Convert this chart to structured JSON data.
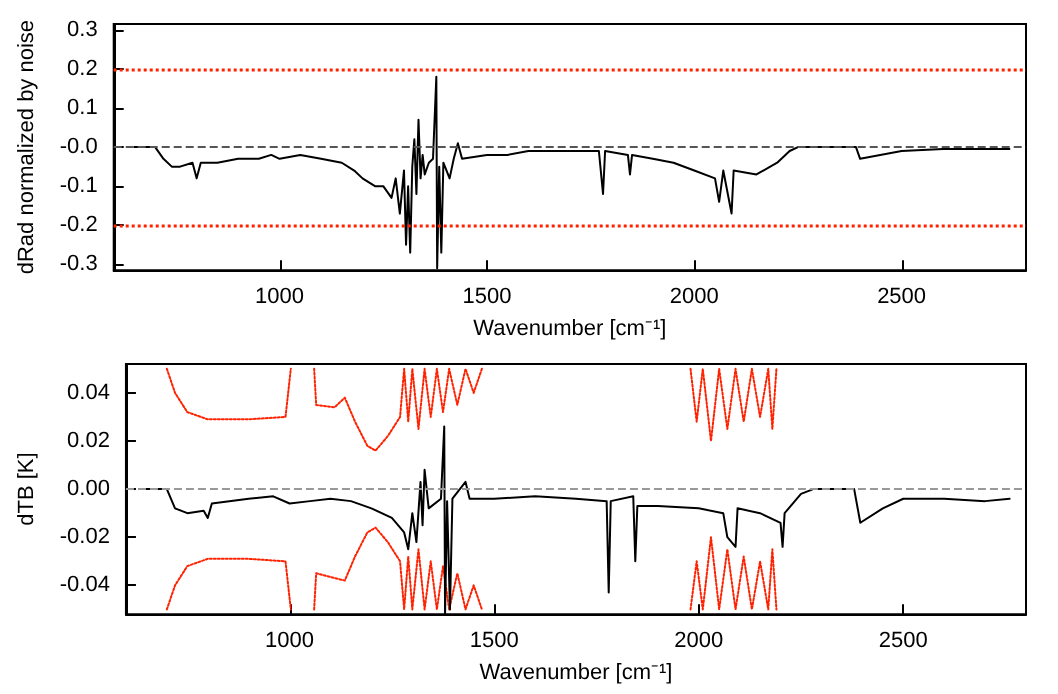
{
  "chart_data": [
    {
      "type": "line",
      "xlabel": "Wavenumber [cm⁻¹]",
      "ylabel": "dRad normalized by noise",
      "xlim": [
        600,
        2800
      ],
      "xticks": [
        1000,
        1500,
        2000,
        2500
      ],
      "ylim": [
        -0.315,
        0.315
      ],
      "yticks": [
        -0.3,
        -0.2,
        -0.1,
        {
          "value": 0,
          "label": "-0.0"
        },
        0.1,
        0.2,
        0.3
      ],
      "grid": false,
      "marker": "none",
      "series": [
        {
          "color": "#000000",
          "line_style": "solid",
          "x": [
            650,
            700,
            720,
            740,
            760,
            790,
            800,
            810,
            850,
            900,
            950,
            980,
            1000,
            1050,
            1100,
            1150,
            1180,
            1200,
            1230,
            1250,
            1270,
            1280,
            1290,
            1300,
            1305,
            1310,
            1315,
            1320,
            1325,
            1330,
            1335,
            1340,
            1345,
            1350,
            1360,
            1370,
            1378,
            1380,
            1385,
            1390,
            1395,
            1410,
            1420,
            1430,
            1440,
            1500,
            1550,
            1600,
            1700,
            1770,
            1780,
            1785,
            1840,
            1845,
            1850,
            1900,
            1950,
            2000,
            2050,
            2060,
            2070,
            2090,
            2095,
            2150,
            2200,
            2230,
            2250,
            2390,
            2400,
            2500,
            2600,
            2760
          ],
          "values": [
            0,
            0,
            -0.03,
            -0.05,
            -0.05,
            -0.04,
            -0.08,
            -0.04,
            -0.04,
            -0.03,
            -0.03,
            -0.02,
            -0.03,
            -0.02,
            -0.03,
            -0.04,
            -0.06,
            -0.08,
            -0.1,
            -0.1,
            -0.13,
            -0.08,
            -0.17,
            -0.06,
            -0.25,
            -0.1,
            -0.27,
            -0.05,
            0.02,
            -0.12,
            0.07,
            -0.08,
            -0.02,
            -0.07,
            -0.04,
            -0.03,
            0.18,
            -0.31,
            -0.05,
            -0.27,
            -0.04,
            -0.08,
            -0.03,
            0.01,
            -0.03,
            -0.02,
            -0.02,
            -0.01,
            -0.01,
            -0.01,
            -0.12,
            -0.01,
            -0.02,
            -0.07,
            -0.02,
            -0.03,
            -0.04,
            -0.06,
            -0.08,
            -0.14,
            -0.06,
            -0.17,
            -0.06,
            -0.07,
            -0.04,
            -0.01,
            0,
            0,
            -0.03,
            -0.01,
            -0.005,
            -0.005
          ]
        }
      ],
      "ref_lines": [
        {
          "axis": "y",
          "value": 0,
          "color": "#555555",
          "line_style": "dashed"
        },
        {
          "axis": "y",
          "value": 0.2,
          "color": "#ff2200",
          "line_style": "dotted"
        },
        {
          "axis": "y",
          "value": -0.2,
          "color": "#ff2200",
          "line_style": "dotted"
        }
      ]
    },
    {
      "type": "line",
      "xlabel": "Wavenumber [cm⁻¹]",
      "ylabel": "dTB [K]",
      "xlim": [
        600,
        2800
      ],
      "xticks": [
        1000,
        1500,
        2000,
        2500
      ],
      "ylim": [
        -0.052,
        0.052
      ],
      "yticks": [
        -0.04,
        -0.02,
        {
          "value": 0,
          "label": "0.00"
        },
        0.02,
        0.04
      ],
      "grid": false,
      "marker": "none",
      "series": [
        {
          "color": "#ff2200",
          "line_style": "dotted",
          "x": [
            700,
            720,
            750,
            800,
            900,
            990,
            1003,
            1010,
            1060,
            1065,
            1110,
            1135,
            1160,
            1190,
            1210,
            1240,
            1270,
            1280,
            1290,
            1300,
            1315,
            1330,
            1345,
            1360,
            1375,
            1390,
            1410,
            1430,
            1450,
            1470,
            1480,
            1980,
            1995,
            2010,
            2030,
            2050,
            2070,
            2090,
            2110,
            2130,
            2150,
            2170,
            2180,
            2190
          ],
          "values": [
            0.05,
            0.04,
            0.032,
            0.029,
            0.029,
            0.03,
            0.05,
            null,
            0.05,
            0.035,
            0.034,
            0.038,
            0.028,
            0.018,
            0.016,
            0.022,
            0.03,
            0.05,
            0.028,
            0.05,
            0.025,
            0.05,
            0.03,
            0.05,
            0.032,
            0.05,
            0.035,
            0.05,
            0.04,
            0.05,
            null,
            0.05,
            0.028,
            0.05,
            0.02,
            0.05,
            0.025,
            0.05,
            0.028,
            0.05,
            0.03,
            0.05,
            0.025,
            0.05
          ]
        },
        {
          "color": "#ff2200",
          "line_style": "dotted",
          "x": [
            700,
            720,
            750,
            800,
            900,
            990,
            1003,
            1010,
            1060,
            1065,
            1110,
            1135,
            1160,
            1190,
            1210,
            1240,
            1270,
            1280,
            1290,
            1300,
            1315,
            1330,
            1345,
            1360,
            1375,
            1390,
            1410,
            1430,
            1450,
            1470,
            1480,
            1980,
            1995,
            2010,
            2030,
            2050,
            2070,
            2090,
            2110,
            2130,
            2150,
            2170,
            2180,
            2190
          ],
          "values": [
            -0.05,
            -0.04,
            -0.032,
            -0.029,
            -0.029,
            -0.03,
            -0.05,
            null,
            -0.05,
            -0.035,
            -0.037,
            -0.038,
            -0.028,
            -0.018,
            -0.016,
            -0.022,
            -0.03,
            -0.05,
            -0.028,
            -0.05,
            -0.025,
            -0.05,
            -0.03,
            -0.05,
            -0.032,
            -0.05,
            -0.035,
            -0.05,
            -0.04,
            -0.05,
            null,
            -0.05,
            -0.03,
            -0.05,
            -0.02,
            -0.05,
            -0.025,
            -0.05,
            -0.028,
            -0.05,
            -0.03,
            -0.05,
            -0.025,
            -0.05
          ]
        },
        {
          "color": "#000000",
          "line_style": "solid",
          "x": [
            650,
            700,
            720,
            750,
            790,
            800,
            810,
            900,
            960,
            1000,
            1050,
            1100,
            1150,
            1200,
            1250,
            1280,
            1290,
            1300,
            1310,
            1320,
            1325,
            1330,
            1340,
            1370,
            1378,
            1380,
            1385,
            1392,
            1398,
            1430,
            1440,
            1500,
            1600,
            1700,
            1775,
            1780,
            1785,
            1840,
            1845,
            1850,
            1900,
            2000,
            2060,
            2070,
            2090,
            2095,
            2150,
            2200,
            2205,
            2210,
            2250,
            2280,
            2380,
            2395,
            2450,
            2500,
            2600,
            2700,
            2760
          ],
          "values": [
            0,
            0,
            -0.008,
            -0.01,
            -0.009,
            -0.012,
            -0.006,
            -0.004,
            -0.003,
            -0.006,
            -0.005,
            -0.004,
            -0.005,
            -0.008,
            -0.012,
            -0.018,
            -0.025,
            -0.01,
            -0.022,
            0.003,
            -0.015,
            0.008,
            -0.008,
            -0.004,
            0.026,
            -0.052,
            -0.005,
            -0.05,
            -0.004,
            0.003,
            -0.004,
            -0.004,
            -0.003,
            -0.004,
            -0.005,
            -0.043,
            -0.005,
            -0.003,
            -0.03,
            -0.007,
            -0.007,
            -0.008,
            -0.01,
            -0.02,
            -0.024,
            -0.008,
            -0.01,
            -0.014,
            -0.024,
            -0.01,
            -0.002,
            0,
            0,
            -0.014,
            -0.008,
            -0.004,
            -0.004,
            -0.005,
            -0.004
          ]
        }
      ],
      "ref_lines": [
        {
          "axis": "y",
          "value": 0,
          "color": "#999999",
          "line_style": "dashed"
        }
      ]
    }
  ]
}
